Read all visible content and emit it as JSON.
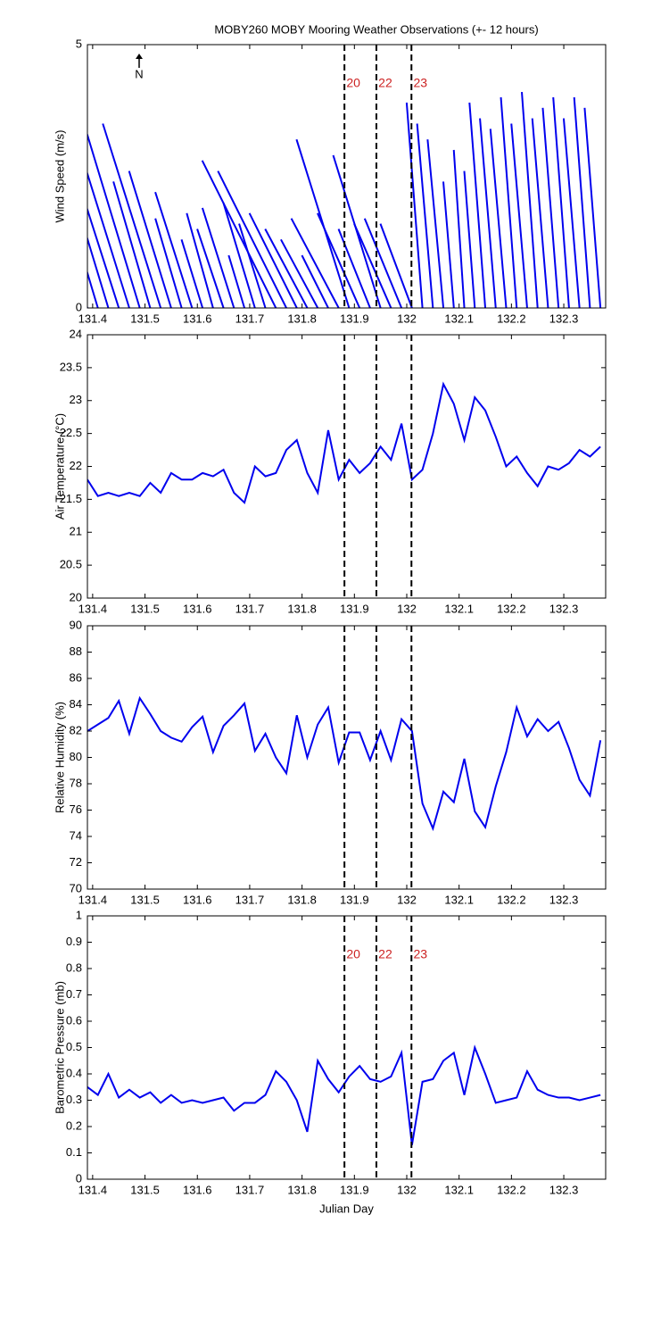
{
  "events": [
    {
      "x": 131.881,
      "label": "20"
    },
    {
      "x": 131.942,
      "label": "22"
    },
    {
      "x": 132.009,
      "label": "23"
    }
  ],
  "chart_data": [
    {
      "type": "stick",
      "title": "MOBY260 MOBY Mooring Weather Observations (+- 12 hours)",
      "north_label": "N",
      "ylabel": "Wind Speed (m/s)",
      "color": "#0000ee",
      "show_events": true,
      "x": [
        131.39,
        131.41,
        131.43,
        131.45,
        131.47,
        131.49,
        131.51,
        131.53,
        131.55,
        131.57,
        131.59,
        131.61,
        131.63,
        131.65,
        131.67,
        131.69,
        131.71,
        131.73,
        131.75,
        131.77,
        131.79,
        131.81,
        131.83,
        131.85,
        131.87,
        131.89,
        131.91,
        131.93,
        131.95,
        131.97,
        131.99,
        132.01,
        132.03,
        132.05,
        132.07,
        132.09,
        132.11,
        132.13,
        132.15,
        132.17,
        132.19,
        132.21,
        132.23,
        132.25,
        132.27,
        132.29,
        132.31,
        132.33,
        132.35,
        132.37
      ],
      "values": [
        1.9,
        4.0,
        3.3,
        2.5,
        3.2,
        3.3,
        2.4,
        3.5,
        2.6,
        1.7,
        2.2,
        1.3,
        1.8,
        1.5,
        1.9,
        1.0,
        2.0,
        1.6,
        2.8,
        2.6,
        1.8,
        1.5,
        1.3,
        1.0,
        1.7,
        3.2,
        1.8,
        1.5,
        2.9,
        1.6,
        1.7,
        1.6,
        3.9,
        3.5,
        3.2,
        2.4,
        3.0,
        2.6,
        3.9,
        3.6,
        3.4,
        4.0,
        3.5,
        4.1,
        3.6,
        3.8,
        4.0,
        3.6,
        4.0,
        3.8
      ],
      "u": [
        -0.6,
        -1.2,
        -1.0,
        -0.8,
        -1.0,
        -1.0,
        -0.7,
        -1.1,
        -0.8,
        -0.5,
        -0.7,
        -0.4,
        -0.5,
        -0.5,
        -0.6,
        -0.3,
        -0.6,
        -0.5,
        -1.4,
        -1.3,
        -0.9,
        -0.8,
        -0.7,
        -0.5,
        -0.9,
        -1.0,
        -0.8,
        -0.6,
        -0.9,
        -0.7,
        -0.7,
        -0.6,
        -0.3,
        -0.3,
        -0.3,
        -0.2,
        -0.2,
        -0.2,
        -0.3,
        -0.3,
        -0.3,
        -0.3,
        -0.3,
        -0.3,
        -0.3,
        -0.3,
        -0.3,
        -0.3,
        -0.3,
        -0.3
      ],
      "xlim": [
        131.39,
        132.38
      ],
      "xticks": [
        131.4,
        131.5,
        131.6,
        131.7,
        131.8,
        131.9,
        132,
        132.1,
        132.2,
        132.3
      ],
      "ylim": [
        0,
        5
      ],
      "yticks": [
        0,
        5
      ]
    },
    {
      "type": "line",
      "ylabel": "Air Temperature (°C)",
      "color": "#0000ee",
      "show_events": false,
      "x": [
        131.39,
        131.41,
        131.43,
        131.45,
        131.47,
        131.49,
        131.51,
        131.53,
        131.55,
        131.57,
        131.59,
        131.61,
        131.63,
        131.65,
        131.67,
        131.69,
        131.71,
        131.73,
        131.75,
        131.77,
        131.79,
        131.81,
        131.83,
        131.85,
        131.87,
        131.89,
        131.91,
        131.93,
        131.95,
        131.97,
        131.99,
        132.01,
        132.03,
        132.05,
        132.07,
        132.09,
        132.11,
        132.13,
        132.15,
        132.17,
        132.19,
        132.21,
        132.23,
        132.25,
        132.27,
        132.29,
        132.31,
        132.33,
        132.35,
        132.37
      ],
      "values": [
        21.8,
        21.55,
        21.6,
        21.55,
        21.6,
        21.55,
        21.75,
        21.6,
        21.9,
        21.8,
        21.8,
        21.9,
        21.85,
        21.95,
        21.6,
        21.45,
        22.0,
        21.85,
        21.9,
        22.25,
        22.4,
        21.9,
        21.6,
        22.55,
        21.8,
        22.1,
        21.9,
        22.05,
        22.3,
        22.1,
        22.65,
        21.8,
        21.95,
        22.5,
        23.25,
        22.95,
        22.4,
        23.05,
        22.85,
        22.45,
        22.0,
        22.15,
        21.9,
        21.7,
        22.0,
        21.95,
        22.05,
        22.25,
        22.15,
        22.3
      ],
      "xlim": [
        131.39,
        132.38
      ],
      "xticks": [
        131.4,
        131.5,
        131.6,
        131.7,
        131.8,
        131.9,
        132,
        132.1,
        132.2,
        132.3
      ],
      "ylim": [
        20,
        24
      ],
      "yticks": [
        20,
        20.5,
        21,
        21.5,
        22,
        22.5,
        23,
        23.5,
        24
      ]
    },
    {
      "type": "line",
      "ylabel": "Relative Humidity (%)",
      "color": "#0000ee",
      "show_events": false,
      "x": [
        131.39,
        131.41,
        131.43,
        131.45,
        131.47,
        131.49,
        131.51,
        131.53,
        131.55,
        131.57,
        131.59,
        131.61,
        131.63,
        131.65,
        131.67,
        131.69,
        131.71,
        131.73,
        131.75,
        131.77,
        131.79,
        131.81,
        131.83,
        131.85,
        131.87,
        131.89,
        131.91,
        131.93,
        131.95,
        131.97,
        131.99,
        132.01,
        132.03,
        132.05,
        132.07,
        132.09,
        132.11,
        132.13,
        132.15,
        132.17,
        132.19,
        132.21,
        132.23,
        132.25,
        132.27,
        132.29,
        132.31,
        132.33,
        132.35,
        132.37
      ],
      "values": [
        82.0,
        82.5,
        83.0,
        84.3,
        81.8,
        84.5,
        83.3,
        82.0,
        81.5,
        81.2,
        82.3,
        83.1,
        80.4,
        82.4,
        83.2,
        84.1,
        80.5,
        81.8,
        80.0,
        78.8,
        83.2,
        80.0,
        82.5,
        83.8,
        79.6,
        81.9,
        81.9,
        79.8,
        82.0,
        79.8,
        82.9,
        82.0,
        76.5,
        74.6,
        77.4,
        76.6,
        79.9,
        75.9,
        74.7,
        77.8,
        80.4,
        83.8,
        81.6,
        82.9,
        82.0,
        82.7,
        80.7,
        78.3,
        77.1,
        81.3
      ],
      "xlim": [
        131.39,
        132.38
      ],
      "xticks": [
        131.4,
        131.5,
        131.6,
        131.7,
        131.8,
        131.9,
        132,
        132.1,
        132.2,
        132.3
      ],
      "ylim": [
        70,
        90
      ],
      "yticks": [
        70,
        72,
        74,
        76,
        78,
        80,
        82,
        84,
        86,
        88,
        90
      ]
    },
    {
      "type": "line",
      "ylabel": "Barometric Pressure (mb)",
      "xlabel": "Julian Day",
      "color": "#0000ee",
      "show_events": true,
      "x": [
        131.39,
        131.41,
        131.43,
        131.45,
        131.47,
        131.49,
        131.51,
        131.53,
        131.55,
        131.57,
        131.59,
        131.61,
        131.63,
        131.65,
        131.67,
        131.69,
        131.71,
        131.73,
        131.75,
        131.77,
        131.79,
        131.81,
        131.83,
        131.85,
        131.87,
        131.89,
        131.91,
        131.93,
        131.95,
        131.97,
        131.99,
        132.01,
        132.03,
        132.05,
        132.07,
        132.09,
        132.11,
        132.13,
        132.15,
        132.17,
        132.19,
        132.21,
        132.23,
        132.25,
        132.27,
        132.29,
        132.31,
        132.33,
        132.35,
        132.37
      ],
      "values": [
        0.35,
        0.32,
        0.4,
        0.31,
        0.34,
        0.31,
        0.33,
        0.29,
        0.32,
        0.29,
        0.3,
        0.29,
        0.3,
        0.31,
        0.26,
        0.29,
        0.29,
        0.32,
        0.41,
        0.37,
        0.3,
        0.18,
        0.45,
        0.38,
        0.33,
        0.39,
        0.43,
        0.38,
        0.37,
        0.39,
        0.48,
        0.13,
        0.37,
        0.38,
        0.45,
        0.48,
        0.32,
        0.5,
        0.4,
        0.29,
        0.3,
        0.31,
        0.41,
        0.34,
        0.32,
        0.31,
        0.31,
        0.3,
        0.31,
        0.32
      ],
      "xlim": [
        131.39,
        132.38
      ],
      "xticks": [
        131.4,
        131.5,
        131.6,
        131.7,
        131.8,
        131.9,
        132,
        132.1,
        132.2,
        132.3
      ],
      "ylim": [
        0,
        1
      ],
      "yticks": [
        0,
        0.1,
        0.2,
        0.3,
        0.4,
        0.5,
        0.6,
        0.7,
        0.8,
        0.9,
        1
      ]
    }
  ]
}
